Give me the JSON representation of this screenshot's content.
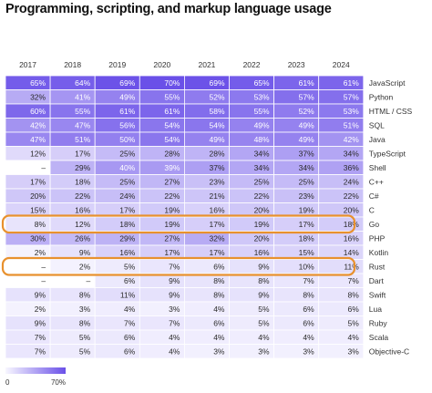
{
  "chart_data": {
    "type": "heatmap",
    "title": "Programming, scripting, and markup language usage",
    "x": [
      "2017",
      "2018",
      "2019",
      "2020",
      "2021",
      "2022",
      "2023",
      "2024"
    ],
    "rows": [
      {
        "name": "JavaScript",
        "values": [
          "65%",
          "64%",
          "69%",
          "70%",
          "69%",
          "65%",
          "61%",
          "61%"
        ]
      },
      {
        "name": "Python",
        "values": [
          "32%",
          "41%",
          "49%",
          "55%",
          "52%",
          "53%",
          "57%",
          "57%"
        ]
      },
      {
        "name": "HTML / CSS",
        "values": [
          "60%",
          "55%",
          "61%",
          "61%",
          "58%",
          "55%",
          "52%",
          "53%"
        ]
      },
      {
        "name": "SQL",
        "values": [
          "42%",
          "47%",
          "56%",
          "54%",
          "54%",
          "49%",
          "49%",
          "51%"
        ]
      },
      {
        "name": "Java",
        "values": [
          "47%",
          "51%",
          "50%",
          "54%",
          "49%",
          "48%",
          "49%",
          "42%"
        ]
      },
      {
        "name": "TypeScript",
        "values": [
          "12%",
          "17%",
          "25%",
          "28%",
          "28%",
          "34%",
          "37%",
          "34%"
        ]
      },
      {
        "name": "Shell",
        "values": [
          "–",
          "29%",
          "40%",
          "39%",
          "37%",
          "34%",
          "34%",
          "36%"
        ]
      },
      {
        "name": "C++",
        "values": [
          "17%",
          "18%",
          "25%",
          "27%",
          "23%",
          "25%",
          "25%",
          "24%"
        ]
      },
      {
        "name": "C#",
        "values": [
          "20%",
          "22%",
          "24%",
          "22%",
          "21%",
          "22%",
          "23%",
          "22%"
        ]
      },
      {
        "name": "C",
        "values": [
          "15%",
          "16%",
          "17%",
          "19%",
          "16%",
          "20%",
          "19%",
          "20%"
        ]
      },
      {
        "name": "Go",
        "values": [
          "8%",
          "12%",
          "18%",
          "19%",
          "17%",
          "19%",
          "17%",
          "18%"
        ]
      },
      {
        "name": "PHP",
        "values": [
          "30%",
          "26%",
          "29%",
          "27%",
          "32%",
          "20%",
          "18%",
          "16%"
        ]
      },
      {
        "name": "Kotlin",
        "values": [
          "2%",
          "9%",
          "16%",
          "17%",
          "17%",
          "16%",
          "15%",
          "14%"
        ]
      },
      {
        "name": "Rust",
        "values": [
          "–",
          "2%",
          "5%",
          "7%",
          "6%",
          "9%",
          "10%",
          "11%"
        ]
      },
      {
        "name": "Dart",
        "values": [
          "–",
          "–",
          "6%",
          "9%",
          "8%",
          "8%",
          "7%",
          "7%"
        ]
      },
      {
        "name": "Swift",
        "values": [
          "9%",
          "8%",
          "11%",
          "9%",
          "8%",
          "9%",
          "8%",
          "8%"
        ]
      },
      {
        "name": "Lua",
        "values": [
          "2%",
          "3%",
          "4%",
          "3%",
          "4%",
          "5%",
          "6%",
          "6%"
        ]
      },
      {
        "name": "Ruby",
        "values": [
          "9%",
          "8%",
          "7%",
          "7%",
          "6%",
          "5%",
          "6%",
          "5%"
        ]
      },
      {
        "name": "Scala",
        "values": [
          "7%",
          "5%",
          "6%",
          "4%",
          "4%",
          "4%",
          "4%",
          "4%"
        ]
      },
      {
        "name": "Objective-C",
        "values": [
          "7%",
          "5%",
          "6%",
          "4%",
          "3%",
          "3%",
          "3%",
          "3%"
        ]
      }
    ],
    "highlighted_rows": [
      "Go",
      "Rust"
    ],
    "color_scale": {
      "min_label": "0",
      "max_label": "70%",
      "min_value": 0,
      "max_value": 70
    },
    "colors": {
      "high": "#6a50e8",
      "low": "#f8f7ff",
      "highlight_outline": "#e8912e",
      "grid_line": "#ffffff"
    }
  }
}
